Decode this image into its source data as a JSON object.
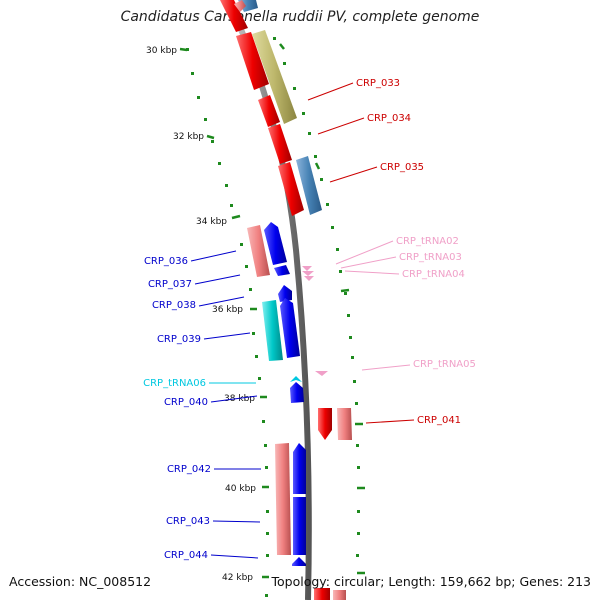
{
  "title": "Candidatus Carsonella ruddii PV, complete genome",
  "accession": "Accession: NC_008512",
  "summary": "Topology: circular; Length: 159,662 bp; Genes: 213",
  "colors": {
    "backbone": "#808080",
    "tick": "#1e8a1e",
    "red_strong": "#ee0000",
    "red_light": "#f08080",
    "olive": "#bdb76b",
    "steel": "#4682b4",
    "blue": "#0000ee",
    "cyan": "#00c8c8",
    "pink": "#f0a0c8"
  },
  "scale": {
    "ticks": [
      {
        "label": "30 kbp"
      },
      {
        "label": "32 kbp"
      },
      {
        "label": "34 kbp"
      },
      {
        "label": "36 kbp"
      },
      {
        "label": "38 kbp"
      },
      {
        "label": "40 kbp"
      },
      {
        "label": "42 kbp"
      }
    ]
  },
  "genes": [
    {
      "name": "CRP_033",
      "strand": "+"
    },
    {
      "name": "CRP_034",
      "strand": "+"
    },
    {
      "name": "CRP_035",
      "strand": "+"
    },
    {
      "name": "CRP_tRNA02",
      "strand": "+"
    },
    {
      "name": "CRP_tRNA03",
      "strand": "+"
    },
    {
      "name": "CRP_tRNA04",
      "strand": "+"
    },
    {
      "name": "CRP_036",
      "strand": "-"
    },
    {
      "name": "CRP_037",
      "strand": "-"
    },
    {
      "name": "CRP_038",
      "strand": "-"
    },
    {
      "name": "CRP_039",
      "strand": "-"
    },
    {
      "name": "CRP_tRNA05",
      "strand": "+"
    },
    {
      "name": "CRP_tRNA06",
      "strand": "-"
    },
    {
      "name": "CRP_040",
      "strand": "-"
    },
    {
      "name": "CRP_041",
      "strand": "+"
    },
    {
      "name": "CRP_042",
      "strand": "-"
    },
    {
      "name": "CRP_043",
      "strand": "-"
    },
    {
      "name": "CRP_044",
      "strand": "-"
    }
  ]
}
